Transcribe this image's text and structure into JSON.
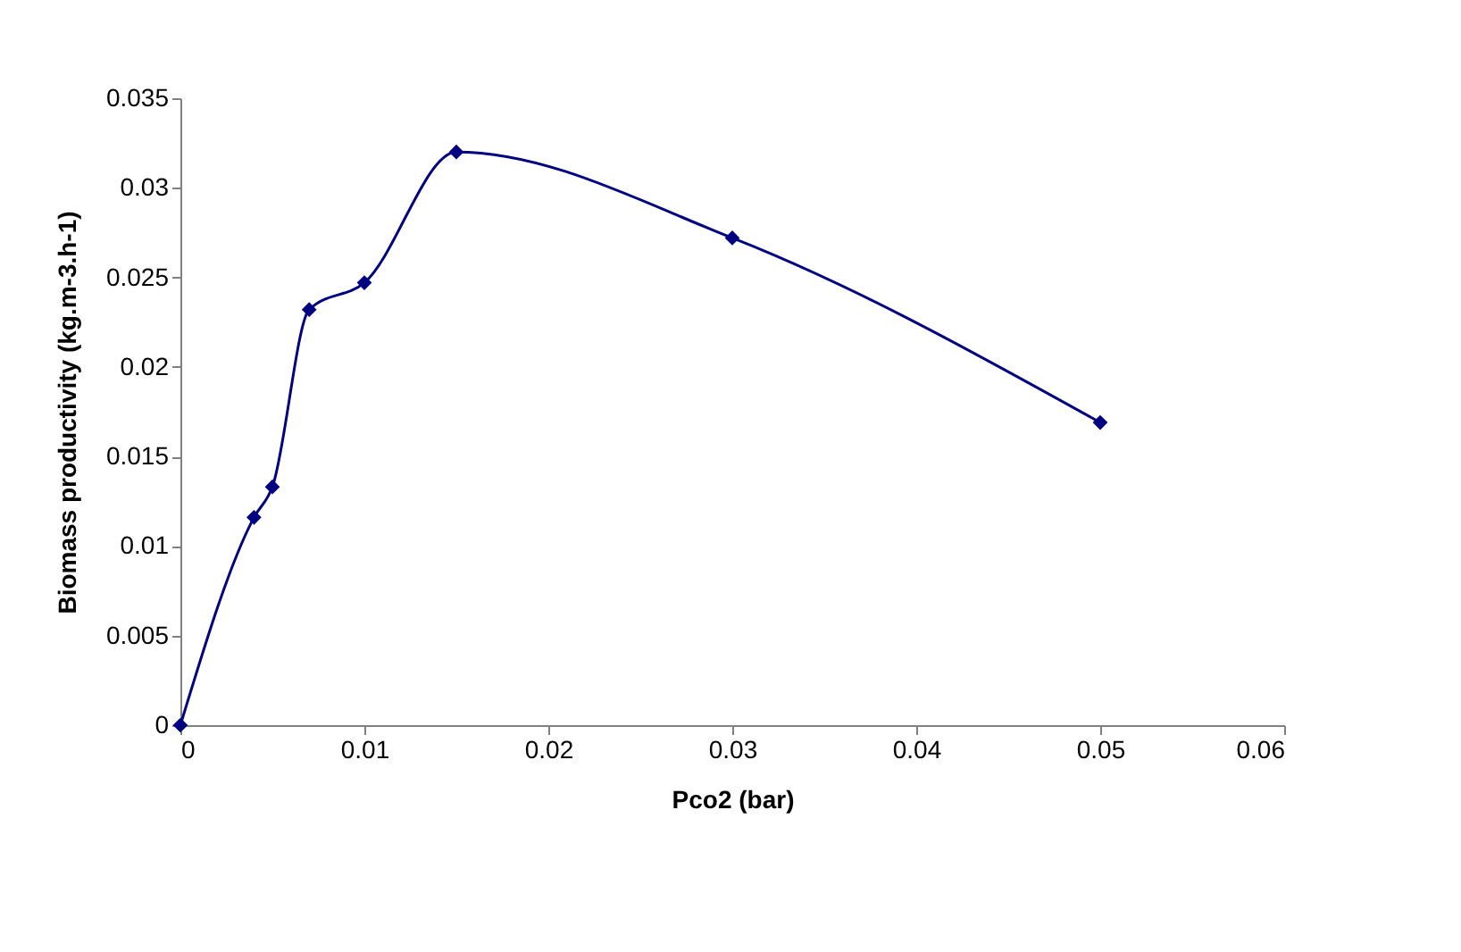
{
  "chart_data": {
    "type": "line",
    "xlabel": "Pco2 (bar)",
    "ylabel": "Biomass productivity (kg.m-3.h-1)",
    "x": [
      0,
      0.004,
      0.005,
      0.007,
      0.01,
      0.015,
      0.03,
      0.05
    ],
    "series": [
      {
        "color": "#000080",
        "values": [
          0,
          0.0116,
          0.0133,
          0.0232,
          0.0247,
          0.032,
          0.0272,
          0.0169
        ]
      }
    ],
    "xlim": [
      0,
      0.06
    ],
    "xticks": [
      0,
      0.01,
      0.02,
      0.03,
      0.04,
      0.05,
      0.06
    ],
    "ylim": [
      0,
      0.035
    ],
    "yticks": [
      0,
      0.005,
      0.01,
      0.015,
      0.02,
      0.025,
      0.03,
      0.035
    ],
    "grid": false,
    "marker": "diamond",
    "line_style": "solid"
  }
}
